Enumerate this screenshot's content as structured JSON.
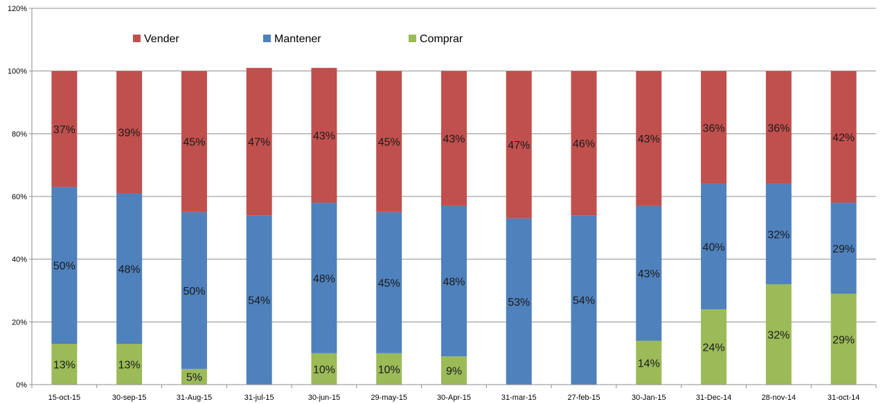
{
  "chart_data": {
    "type": "bar",
    "stacked": true,
    "categories": [
      "15-oct-15",
      "30-sep-15",
      "31-Aug-15",
      "31-jul-15",
      "30-jun-15",
      "29-may-15",
      "30-Apr-15",
      "31-mar-15",
      "27-feb-15",
      "30-Jan-15",
      "31-Dec-14",
      "28-nov-14",
      "31-oct-14"
    ],
    "series": [
      {
        "name": "Comprar",
        "color": "#9BBB59",
        "values": [
          13,
          13,
          5,
          0,
          10,
          10,
          9,
          0,
          0,
          14,
          24,
          32,
          29
        ],
        "labels": [
          "13%",
          "13%",
          "5%",
          "",
          "10%",
          "10%",
          "9%",
          "",
          "",
          "14%",
          "24%",
          "32%",
          "29%"
        ]
      },
      {
        "name": "Mantener",
        "color": "#4F81BD",
        "values": [
          50,
          48,
          50,
          54,
          48,
          45,
          48,
          53,
          54,
          43,
          40,
          32,
          29
        ],
        "labels": [
          "50%",
          "48%",
          "50%",
          "54%",
          "48%",
          "45%",
          "48%",
          "53%",
          "54%",
          "43%",
          "40%",
          "32%",
          "29%"
        ]
      },
      {
        "name": "Vender",
        "color": "#C0504D",
        "values": [
          37,
          39,
          45,
          47,
          43,
          45,
          43,
          47,
          46,
          43,
          36,
          36,
          42
        ],
        "labels": [
          "37%",
          "39%",
          "45%",
          "47%",
          "43%",
          "45%",
          "43%",
          "47%",
          "46%",
          "43%",
          "36%",
          "36%",
          "42%"
        ]
      }
    ],
    "legend_order": [
      "Vender",
      "Mantener",
      "Comprar"
    ],
    "legend_position": "top-left",
    "ylim": [
      0,
      120
    ],
    "yticks": [
      0,
      20,
      40,
      60,
      80,
      100,
      120
    ],
    "ytick_labels": [
      "0%",
      "20%",
      "40%",
      "60%",
      "80%",
      "100%",
      "120%"
    ],
    "grid": true,
    "title": "",
    "xlabel": "",
    "ylabel": ""
  }
}
